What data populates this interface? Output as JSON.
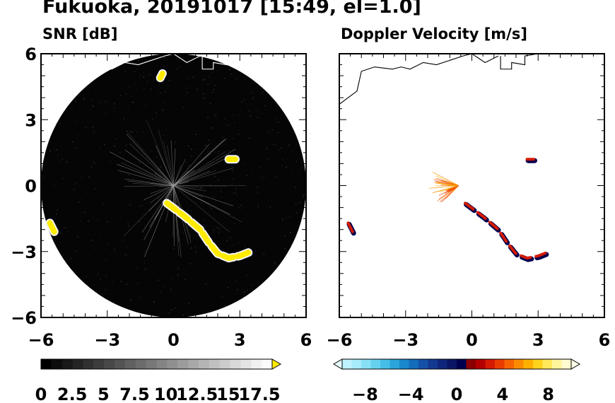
{
  "figure": {
    "title": "Fukuoka, 20191017 [15:49, el=1.0]"
  },
  "chart_data": [
    {
      "type": "heatmap",
      "title": "SNR [dB]",
      "xlabel": "",
      "ylabel": "",
      "xlim": [
        -6,
        6
      ],
      "ylim": [
        -6,
        6
      ],
      "xticks": [
        "-6",
        "-3",
        "0",
        "3",
        "6"
      ],
      "yticks": [
        "6",
        "3",
        "0",
        "-3",
        "-6"
      ],
      "range_ring_radius": 6,
      "colorbar": {
        "ticks": [
          "0",
          "2.5",
          "5",
          "7.5",
          "10",
          "12.5",
          "15",
          "17.5"
        ],
        "min": 0,
        "max": 17.5,
        "extend": "max",
        "colors": [
          "#000000",
          "#0c0c0c",
          "#181818",
          "#242424",
          "#303030",
          "#3c3c3c",
          "#484848",
          "#545454",
          "#606060",
          "#6c6c6c",
          "#787878",
          "#848484",
          "#909090",
          "#9c9c9c",
          "#a8a8a8",
          "#b4b4b4",
          "#c0c0c0",
          "#cccccc",
          "#d8d8d8",
          "#e4e4e4",
          "#f0f0f0",
          "#fafafa"
        ],
        "extend_color": "#ffeb00"
      },
      "echo_segments": [
        {
          "x": [
            -0.3,
            0.5,
            1.2,
            1.6,
            2.0,
            2.5,
            3.0,
            3.5
          ],
          "y": [
            -0.8,
            -1.4,
            -2.0,
            -2.6,
            -3.1,
            -3.3,
            -3.2,
            -3.0
          ]
        },
        {
          "x": [
            2.5,
            2.8
          ],
          "y": [
            1.2,
            1.2
          ]
        },
        {
          "x": [
            -5.6,
            -5.4
          ],
          "y": [
            -1.7,
            -2.1
          ]
        },
        {
          "x": [
            -0.5,
            -0.6
          ],
          "y": [
            5.1,
            4.9
          ]
        }
      ],
      "echo_color": "#ffeb00"
    },
    {
      "type": "heatmap",
      "title": "Doppler Velocity [m/s]",
      "xlabel": "",
      "ylabel": "",
      "xlim": [
        -6,
        6
      ],
      "ylim": [
        -6,
        6
      ],
      "xticks": [
        "-6",
        "-3",
        "0",
        "3",
        "6"
      ],
      "yticks": [],
      "colorbar": {
        "ticks": [
          "−8",
          "−4",
          "0",
          "4",
          "8"
        ],
        "min": -10,
        "max": 10,
        "extend": "both",
        "colors": [
          "#bff3ff",
          "#a6ecfb",
          "#87e1f6",
          "#66d1ef",
          "#45bde6",
          "#2aa4db",
          "#1a88cc",
          "#146cba",
          "#1451a6",
          "#133992",
          "#10267c",
          "#0a1664",
          "#000050",
          "#8b0000",
          "#b30000",
          "#d41a00",
          "#ea3c00",
          "#f56400",
          "#fa8b00",
          "#fdb000",
          "#ffd21c",
          "#ffe95a",
          "#fff49a",
          "#fffbd0"
        ],
        "under_color": "#e6fbff",
        "over_color": "#fffde8"
      },
      "echo_segments": [
        {
          "x": [
            -0.3,
            0.5,
            1.2,
            1.6,
            2.0,
            2.5,
            3.0,
            3.5
          ],
          "y": [
            -0.8,
            -1.4,
            -2.0,
            -2.6,
            -3.1,
            -3.3,
            -3.2,
            -3.0
          ],
          "color_top": "#d41a00",
          "color_bottom": "#000050"
        },
        {
          "x": [
            2.5,
            2.8
          ],
          "y": [
            1.2,
            1.2
          ],
          "color_top": "#d41a00",
          "color_bottom": "#000050"
        },
        {
          "x": [
            -5.6,
            -5.4
          ],
          "y": [
            -1.7,
            -2.1
          ],
          "color_top": "#d41a00",
          "color_bottom": "#000050"
        }
      ]
    }
  ]
}
